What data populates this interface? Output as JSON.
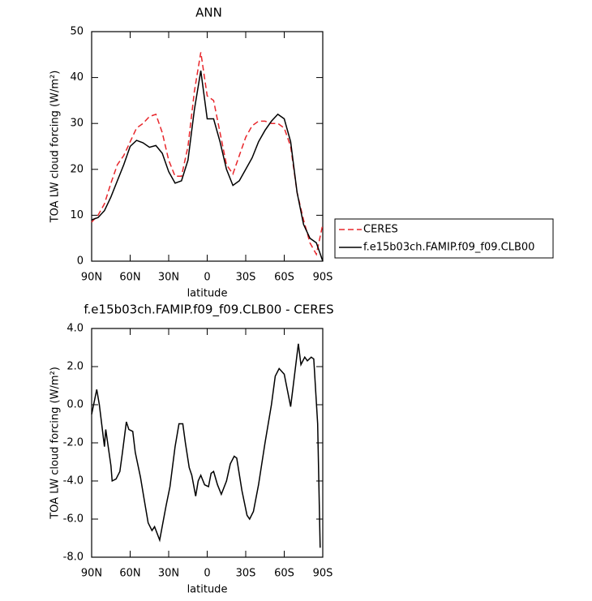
{
  "chart_data": [
    {
      "type": "line",
      "title": "ANN",
      "x_label": "latitude",
      "y_label": "TOA LW cloud forcing (W/m²)",
      "xlim": [
        90,
        -90
      ],
      "xticks": [
        {
          "value": 90,
          "label": "90N"
        },
        {
          "value": 60,
          "label": "60N"
        },
        {
          "value": 30,
          "label": "30N"
        },
        0,
        {
          "value": -30,
          "label": "30S"
        },
        {
          "value": -60,
          "label": "60S"
        },
        {
          "value": -90,
          "label": "90S"
        }
      ],
      "ylim": [
        0,
        50
      ],
      "yticks": [
        0,
        10,
        20,
        30,
        40,
        50
      ],
      "legend": "right",
      "x": [
        90,
        85,
        80,
        75,
        70,
        65,
        60,
        55,
        50,
        45,
        40,
        35,
        30,
        25,
        20,
        15,
        10,
        5,
        0,
        -5,
        -10,
        -15,
        -20,
        -25,
        -30,
        -35,
        -40,
        -45,
        -50,
        -55,
        -60,
        -65,
        -70,
        -75,
        -80,
        -85,
        -90
      ],
      "series": [
        {
          "name": "CERES",
          "color": "#e8262b",
          "dashed": true,
          "values": [
            8.5,
            10,
            12.5,
            17,
            21,
            23,
            26,
            29,
            30,
            31.5,
            32,
            28,
            22,
            18.5,
            18.5,
            25,
            37,
            45.5,
            36,
            35,
            28,
            21,
            19,
            23,
            27,
            29.5,
            30.5,
            30.5,
            30,
            30,
            29,
            25,
            15,
            9,
            4,
            1.5,
            8
          ]
        },
        {
          "name": "f.e15b03ch.FAMIP.f09_f09.CLB00",
          "color": "#000000",
          "dashed": false,
          "values": [
            9,
            9.5,
            11,
            14,
            17.5,
            21,
            25,
            26.3,
            25.8,
            24.8,
            25.2,
            23.5,
            19.5,
            17,
            17.5,
            22,
            33,
            41.5,
            31,
            31,
            26,
            20,
            16.5,
            17.5,
            20,
            22.5,
            26,
            28.5,
            30.5,
            32,
            31,
            26,
            15,
            8,
            5,
            4,
            0
          ]
        }
      ]
    },
    {
      "type": "line",
      "title": "f.e15b03ch.FAMIP.f09_f09.CLB00 - CERES",
      "x_label": "latitude",
      "y_label": "TOA LW cloud forcing (W/m²)",
      "xlim": [
        90,
        -90
      ],
      "xticks": [
        {
          "value": 90,
          "label": "90N"
        },
        {
          "value": 60,
          "label": "60N"
        },
        {
          "value": 30,
          "label": "30N"
        },
        0,
        {
          "value": -30,
          "label": "30S"
        },
        {
          "value": -60,
          "label": "60S"
        },
        {
          "value": -90,
          "label": "90S"
        }
      ],
      "ylim": [
        -8,
        4
      ],
      "yticks": [
        {
          "value": -8,
          "label": "-8.0"
        },
        {
          "value": -6,
          "label": "-6.0"
        },
        {
          "value": -4,
          "label": "-4.0"
        },
        {
          "value": -2,
          "label": "-2.0"
        },
        {
          "value": 0,
          "label": "0.0"
        },
        {
          "value": 2,
          "label": "2.0"
        },
        {
          "value": 4,
          "label": "4.0"
        }
      ],
      "color": "#000000",
      "x": [
        90,
        86,
        84,
        80,
        79,
        75,
        74,
        71,
        68,
        66,
        63,
        61,
        58,
        56,
        52,
        49,
        46,
        43,
        41,
        37,
        32,
        29,
        25,
        22,
        19,
        17,
        14,
        12,
        9,
        7,
        5,
        2,
        -1,
        -3,
        -5,
        -8,
        -11,
        -15,
        -18,
        -21,
        -23,
        -27,
        -31,
        -33,
        -36,
        -40,
        -45,
        -50,
        -53,
        -56,
        -60,
        -65,
        -67,
        -71,
        -73,
        -76,
        -78,
        -81,
        -83,
        -86,
        -88
      ],
      "values": [
        -0.5,
        0.8,
        0.0,
        -2.2,
        -1.3,
        -3.2,
        -4.0,
        -3.9,
        -3.5,
        -2.5,
        -0.9,
        -1.3,
        -1.4,
        -2.5,
        -3.8,
        -5.0,
        -6.2,
        -6.6,
        -6.4,
        -7.1,
        -5.3,
        -4.3,
        -2.2,
        -1.0,
        -1.0,
        -2.0,
        -3.3,
        -3.7,
        -4.8,
        -4.0,
        -3.7,
        -4.2,
        -4.3,
        -3.6,
        -3.5,
        -4.2,
        -4.7,
        -4.0,
        -3.1,
        -2.7,
        -2.8,
        -4.5,
        -5.8,
        -6.0,
        -5.6,
        -4.2,
        -2.0,
        0.0,
        1.5,
        1.9,
        1.6,
        -0.1,
        1.0,
        3.2,
        2.1,
        2.5,
        2.3,
        2.5,
        2.4,
        -1.0,
        -7.5
      ]
    }
  ]
}
